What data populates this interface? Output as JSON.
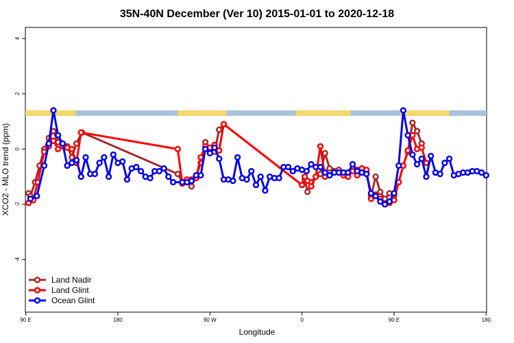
{
  "chart_data": {
    "type": "line",
    "title": "35N-40N December (Ver 10)   2015-01-01 to 2020-12-18",
    "xlabel": "Longitude",
    "ylabel": "XCO2 - MLO trend (ppm)",
    "xlim": [
      -0.5,
      500.5
    ],
    "ylim": [
      -5.9,
      4.4
    ],
    "x_ticks": [
      {
        "pos": 0,
        "label": "90 E"
      },
      {
        "pos": 100,
        "label": "180"
      },
      {
        "pos": 200,
        "label": "90 W"
      },
      {
        "pos": 300,
        "label": "0"
      },
      {
        "pos": 400,
        "label": "90 E"
      },
      {
        "pos": 500,
        "label": "180"
      }
    ],
    "y_ticks": [
      {
        "value": -4,
        "label": "-4"
      },
      {
        "value": -2,
        "label": "-2"
      },
      {
        "value": 0,
        "label": "0"
      },
      {
        "value": 2,
        "label": "2"
      },
      {
        "value": 4,
        "label": "4"
      }
    ],
    "legend_position": "bottom-left",
    "land_mask_band": {
      "y_range": [
        1.2,
        1.4
      ],
      "land_color": "#f5d76e",
      "ocean_color": "#a9c2dd",
      "land_segments": [
        [
          0,
          54
        ],
        [
          165,
          218
        ],
        [
          293,
          353
        ],
        [
          407,
          460
        ]
      ]
    },
    "series": [
      {
        "name": "Land Nadir",
        "color": "#a52a2a",
        "x": [
          3,
          5,
          10,
          15,
          20,
          25,
          30,
          35,
          40,
          45,
          50,
          55,
          61,
          165,
          170,
          175,
          180,
          185,
          190,
          195,
          200,
          205,
          210,
          215,
          300,
          303,
          306,
          310,
          315,
          320,
          325,
          330,
          340,
          345,
          350,
          355,
          360,
          365,
          370,
          375,
          380,
          385,
          390,
          395,
          400,
          405,
          410,
          415,
          420,
          425,
          430
        ],
        "y": [
          -1.6,
          -1.7,
          -1.2,
          -0.6,
          0.0,
          0.4,
          0.65,
          0.25,
          0.15,
          0.1,
          -0.3,
          0.2,
          0.6,
          -0.9,
          -1.2,
          -1.2,
          -1.35,
          -1.0,
          -0.5,
          0.25,
          -0.1,
          -0.1,
          0.7,
          0.9,
          -1.3,
          -1.1,
          -1.55,
          -1.2,
          -1.0,
          -0.9,
          -0.15,
          -0.7,
          -0.75,
          -0.85,
          -1.0,
          -0.7,
          -0.75,
          -0.7,
          -0.85,
          -1.7,
          -1.0,
          -1.55,
          -1.8,
          -1.6,
          -1.7,
          -1.2,
          -0.6,
          -0.1,
          0.95,
          0.65,
          0.2
        ]
      },
      {
        "name": "Land Glint",
        "color": "#ff0000",
        "x": [
          3,
          8,
          13,
          20,
          25,
          30,
          35,
          40,
          45,
          50,
          55,
          60,
          165,
          170,
          175,
          180,
          185,
          190,
          195,
          200,
          205,
          210,
          215,
          300,
          303,
          306,
          310,
          315,
          320,
          325,
          330,
          340,
          345,
          350,
          355,
          360,
          365,
          370,
          375,
          380,
          385,
          390,
          395,
          400,
          405,
          410,
          415,
          420,
          425,
          430,
          435
        ],
        "y": [
          -1.95,
          -1.85,
          -1.2,
          -0.1,
          0.1,
          0.3,
          0.0,
          0.1,
          0.05,
          0.0,
          -0.5,
          0.6,
          0.0,
          -1.25,
          -1.1,
          -1.1,
          -1.05,
          -0.3,
          0.1,
          0.05,
          0.15,
          -0.05,
          0.9,
          -1.3,
          -1.0,
          -1.15,
          -1.35,
          -1.0,
          0.1,
          -1.0,
          -0.95,
          -0.85,
          -0.95,
          -1.0,
          -0.8,
          -0.95,
          -0.7,
          -0.75,
          -1.8,
          -1.65,
          -1.8,
          -2.0,
          -1.95,
          -1.85,
          -1.2,
          -0.6,
          -0.05,
          0.5,
          0.0,
          0.05,
          -0.5
        ]
      },
      {
        "name": "Ocean Glint",
        "color": "#0000ee",
        "x": [
          5,
          12,
          20,
          25,
          30,
          35,
          40,
          45,
          50,
          55,
          60,
          65,
          70,
          75,
          80,
          85,
          90,
          95,
          100,
          105,
          110,
          115,
          120,
          125,
          130,
          135,
          140,
          145,
          150,
          155,
          160,
          170,
          175,
          180,
          185,
          190,
          195,
          200,
          205,
          210,
          215,
          220,
          225,
          230,
          235,
          240,
          245,
          250,
          255,
          260,
          265,
          270,
          275,
          280,
          285,
          290,
          295,
          300,
          305,
          310,
          315,
          320,
          325,
          330,
          335,
          340,
          345,
          350,
          355,
          360,
          365,
          370,
          375,
          380,
          385,
          390,
          395,
          400,
          405,
          410,
          415,
          420,
          425,
          430,
          435,
          440,
          445,
          450,
          455,
          460,
          465,
          470,
          475,
          480,
          485,
          490,
          495,
          500
        ],
        "y": [
          -1.8,
          -1.7,
          -0.6,
          0.2,
          1.4,
          0.5,
          0.2,
          -0.6,
          -0.5,
          -0.4,
          -1.0,
          -0.3,
          -0.9,
          -0.9,
          -0.5,
          -0.3,
          -1.0,
          -0.2,
          -0.5,
          -0.45,
          -1.1,
          -0.7,
          -0.65,
          -0.8,
          -1.0,
          -1.05,
          -0.8,
          -0.8,
          -0.7,
          -1.0,
          -1.2,
          -1.2,
          -1.2,
          -1.15,
          -0.95,
          -0.95,
          0.0,
          -0.15,
          0.05,
          -0.35,
          -1.1,
          -1.1,
          -1.15,
          -0.3,
          -1.05,
          -1.1,
          -0.8,
          -1.3,
          -1.0,
          -1.5,
          -1.0,
          -1.05,
          -1.05,
          -0.65,
          -0.65,
          -0.8,
          -0.7,
          -0.75,
          -0.8,
          -0.55,
          -0.65,
          -0.65,
          -0.85,
          -0.95,
          -0.85,
          -0.85,
          -0.85,
          -0.85,
          -0.55,
          -0.8,
          -0.85,
          -0.9,
          -1.6,
          -1.7,
          -1.9,
          -2.0,
          -1.9,
          -1.6,
          -0.6,
          1.4,
          0.5,
          -0.2,
          -0.55,
          -0.35,
          -1.0,
          -0.25,
          -0.85,
          -0.9,
          -0.5,
          -0.35,
          -0.95,
          -0.9,
          -0.85,
          -0.85,
          -0.8,
          -0.8,
          -0.85,
          -0.95
        ]
      }
    ]
  }
}
